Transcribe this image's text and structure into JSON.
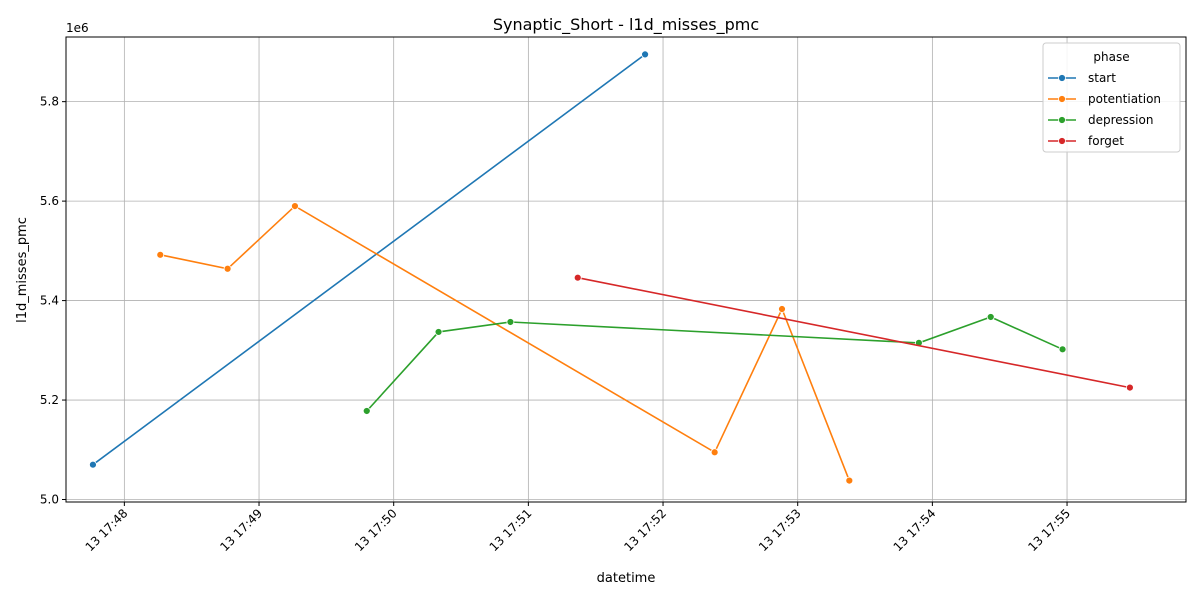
{
  "chart_data": {
    "type": "line",
    "title": "Synaptic_Short - l1d_misses_pmc",
    "xlabel": "datetime",
    "ylabel": "l1d_misses_pmc",
    "y_offset_label": "1e6",
    "x_ticks": [
      "13 17:48",
      "13 17:49",
      "13 17:50",
      "13 17:51",
      "13 17:52",
      "13 17:53",
      "13 17:54",
      "13 17:55"
    ],
    "y_ticks": [
      "5.0",
      "5.2",
      "5.4",
      "5.6",
      "5.8"
    ],
    "ylim": [
      4.995,
      5.93
    ],
    "xlim": [
      "13 17:47:34",
      "13 17:55:53"
    ],
    "grid": true,
    "legend": {
      "title": "phase",
      "placement": "top-right"
    },
    "series": [
      {
        "name": "start",
        "color": "#1f77b4",
        "x": [
          "13 17:47:46",
          "13 17:51:52"
        ],
        "y": [
          5.07,
          5.895
        ]
      },
      {
        "name": "potentiation",
        "color": "#ff7f0e",
        "x": [
          "13 17:48:16",
          "13 17:48:46",
          "13 17:49:16",
          "13 17:52:23",
          "13 17:52:53",
          "13 17:53:23"
        ],
        "y": [
          5.492,
          5.464,
          5.59,
          5.095,
          5.383,
          5.038
        ]
      },
      {
        "name": "depression",
        "color": "#2ca02c",
        "x": [
          "13 17:49:48",
          "13 17:50:20",
          "13 17:50:52",
          "13 17:53:54",
          "13 17:54:26",
          "13 17:54:58"
        ],
        "y": [
          5.178,
          5.337,
          5.357,
          5.315,
          5.367,
          5.302
        ]
      },
      {
        "name": "forget",
        "color": "#d62728",
        "x": [
          "13 17:51:22",
          "13 17:55:28"
        ],
        "y": [
          5.446,
          5.225
        ]
      }
    ]
  }
}
